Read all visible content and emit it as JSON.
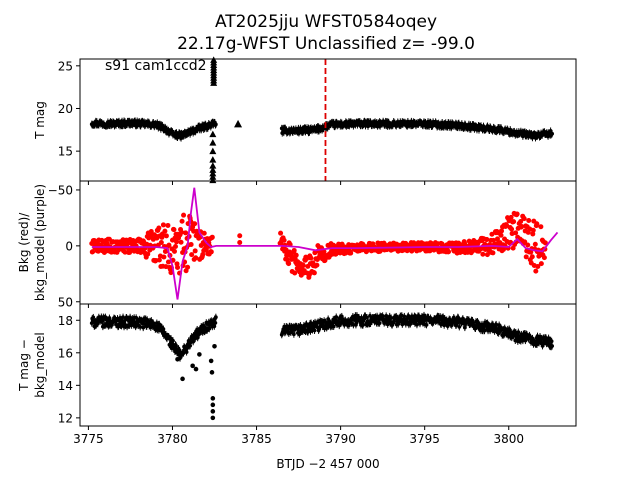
{
  "figure": {
    "title_line1": "AT2025jju  WFST0584oqey",
    "title_line2": "22.17g-WFST Unclassified z= -99.0",
    "annotation": "s91 cam1ccd2",
    "xlabel": "BTJD −2 457 000"
  },
  "colors": {
    "points": "#000000",
    "bkg": "#ff0000",
    "model": "#cc00cc",
    "vline": "#dd0000"
  },
  "chart_data": [
    {
      "type": "scatter",
      "panel": "top",
      "ylabel": "T mag",
      "y_inverted": true,
      "xlim": [
        3774.5,
        3804.0
      ],
      "ylim": [
        25.8,
        11.5
      ],
      "xticks": [
        3775,
        3780,
        3785,
        3790,
        3795,
        3800
      ],
      "xtick_labels": [
        "3775",
        "3780",
        "3785",
        "3790",
        "3795",
        "3800"
      ],
      "yticks": [
        15,
        20,
        25
      ],
      "ytick_labels": [
        "15",
        "20",
        "25"
      ],
      "vline_x": 3789.1,
      "segments": [
        {
          "x": [
            3775.2,
            3776.5,
            3777.5,
            3778.2,
            3779.0,
            3779.5,
            3780.0,
            3780.5,
            3781.0,
            3781.5,
            3782.0,
            3782.6
          ],
          "y": [
            18.3,
            18.2,
            18.3,
            18.2,
            18.1,
            17.7,
            17.0,
            16.8,
            17.2,
            17.6,
            17.9,
            18.3
          ]
        },
        {
          "x": [
            3786.5,
            3787.5,
            3788.5,
            3789.5,
            3791.0,
            3793.0,
            3795.0,
            3797.0,
            3798.5,
            3799.5,
            3800.5,
            3801.5,
            3802.6
          ],
          "y": [
            17.4,
            17.4,
            17.5,
            18.1,
            18.2,
            18.2,
            18.2,
            18.0,
            17.7,
            17.5,
            17.1,
            16.8,
            17.1
          ]
        }
      ],
      "spikes": [
        {
          "x": 3782.4,
          "y": [
            11.6,
            12.0,
            12.4,
            12.8,
            13.3,
            14.0,
            15.0,
            16.0,
            17.0
          ]
        },
        {
          "x": 3782.45,
          "y": [
            23.0,
            23.3,
            23.6,
            23.9,
            24.2,
            24.5,
            24.8,
            25.1,
            25.4,
            25.7
          ]
        }
      ],
      "triangle": {
        "x": 3783.9,
        "y": 18.2
      }
    },
    {
      "type": "scatter",
      "panel": "middle",
      "ylabel_line1": "Bkg (red)/",
      "ylabel_line2": "bkg_model (purple)",
      "xlim": [
        3774.5,
        3804.0
      ],
      "ylim": [
        -58,
        52
      ],
      "xticks": [
        3775,
        3780,
        3785,
        3790,
        3795,
        3800
      ],
      "yticks": [
        50,
        0,
        -50
      ],
      "ytick_labels": [
        "50",
        "0",
        "−50"
      ],
      "bkg_segments": [
        {
          "x": [
            3775.2,
            3776.5,
            3778.0,
            3779.3,
            3779.8,
            3780.3,
            3780.8,
            3781.3,
            3781.8,
            3782.4
          ],
          "y": [
            0,
            0,
            0,
            1,
            4,
            8,
            -7,
            -3,
            0,
            0
          ],
          "spread": [
            6,
            6,
            6,
            20,
            24,
            20,
            30,
            20,
            12,
            8
          ]
        },
        {
          "x": [
            3786.4,
            3786.9,
            3787.3,
            3787.7,
            3788.2,
            3788.7,
            3789.5,
            3791.0,
            3793.0,
            3795.0,
            3797.0,
            3798.8,
            3799.7,
            3800.4,
            3801.0,
            3801.6,
            3802.2
          ],
          "y": [
            -6,
            8,
            16,
            19,
            20,
            8,
            3,
            2,
            1,
            1,
            2,
            0,
            -10,
            -14,
            -8,
            3,
            0
          ],
          "spread": [
            6,
            12,
            12,
            12,
            12,
            10,
            5,
            4,
            4,
            4,
            5,
            8,
            14,
            16,
            20,
            24,
            14
          ]
        }
      ],
      "bkg_isolated": [
        [
          3784.0,
          -3
        ],
        [
          3784.0,
          -9
        ]
      ],
      "model_x": [
        3775.2,
        3779.0,
        3779.7,
        3780.0,
        3780.3,
        3780.6,
        3780.9,
        3781.1,
        3781.3,
        3781.6,
        3782.0,
        3782.3,
        3782.6,
        3786.5,
        3787.5,
        3788.5,
        3789.5,
        3791.0,
        3795.0,
        3797.0,
        3799.0,
        3800.0,
        3800.5,
        3801.0,
        3801.5,
        3802.0,
        3802.5,
        3802.9
      ],
      "model_y": [
        1,
        1,
        2,
        18,
        48,
        14,
        0,
        -30,
        -52,
        -12,
        -3,
        1,
        0,
        0,
        1,
        4,
        2,
        2,
        1,
        1,
        0,
        1,
        -6,
        2,
        4,
        5,
        -5,
        -12
      ]
    },
    {
      "type": "scatter",
      "panel": "bottom",
      "ylabel_line1": "T mag −",
      "ylabel_line2": "bkg_model",
      "y_inverted": true,
      "xlim": [
        3774.5,
        3804.0
      ],
      "ylim": [
        19.0,
        11.5
      ],
      "xticks": [
        3775,
        3780,
        3785,
        3790,
        3795,
        3800
      ],
      "yticks": [
        12,
        14,
        16,
        18
      ],
      "ytick_labels": [
        "12",
        "14",
        "16",
        "18"
      ],
      "segments": [
        {
          "x": [
            3775.2,
            3776.5,
            3777.5,
            3778.5,
            3779.0,
            3779.5,
            3780.0,
            3780.5,
            3781.0,
            3781.5,
            3782.0,
            3782.6
          ],
          "y": [
            17.9,
            17.9,
            17.9,
            17.8,
            17.7,
            17.2,
            16.5,
            15.8,
            16.6,
            17.2,
            17.6,
            17.9
          ]
        },
        {
          "x": [
            3786.5,
            3787.5,
            3788.5,
            3789.5,
            3791.0,
            3793.0,
            3795.0,
            3797.0,
            3798.5,
            3799.5,
            3800.5,
            3801.5,
            3802.6
          ],
          "y": [
            17.3,
            17.4,
            17.6,
            17.9,
            18.0,
            18.0,
            18.0,
            17.9,
            17.6,
            17.4,
            17.0,
            16.8,
            16.6
          ]
        }
      ],
      "outliers": [
        [
          3780.3,
          15.6
        ],
        [
          3780.6,
          14.4
        ],
        [
          3781.2,
          15.2
        ],
        [
          3781.4,
          15.0
        ],
        [
          3781.6,
          15.9
        ],
        [
          3782.4,
          12.0
        ],
        [
          3782.4,
          12.4
        ],
        [
          3782.4,
          12.8
        ],
        [
          3782.4,
          13.2
        ],
        [
          3782.35,
          14.8
        ],
        [
          3782.3,
          15.5
        ],
        [
          3782.5,
          16.4
        ]
      ]
    }
  ]
}
